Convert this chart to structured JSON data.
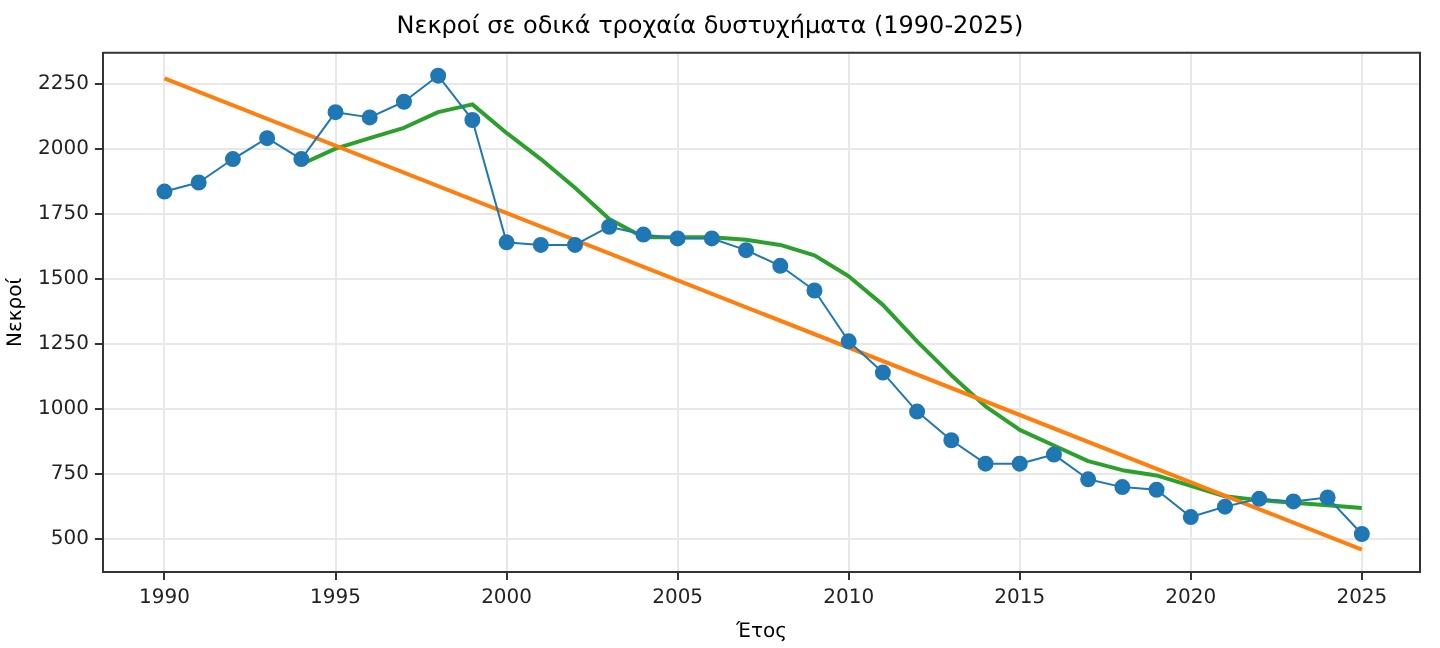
{
  "chart_data": {
    "type": "line",
    "title": "Νεκροί σε οδικά τροχαία δυστυχήματα (1990-2025)",
    "xlabel": "Έτος",
    "ylabel": "Νεκροί",
    "xlim": [
      1988.2,
      2026.7
    ],
    "xticks": [
      1990,
      1995,
      2000,
      2005,
      2010,
      2015,
      2020,
      2025
    ],
    "ylim": [
      374,
      2368
    ],
    "yticks": [
      500,
      750,
      1000,
      1250,
      1500,
      1750,
      2000,
      2250
    ],
    "grid": true,
    "legend": false,
    "series": [
      {
        "color": "#1f77b4",
        "marker": "circle",
        "x": [
          1990,
          1991,
          1992,
          1993,
          1994,
          1995,
          1996,
          1997,
          1998,
          1999,
          2000,
          2001,
          2002,
          2003,
          2004,
          2005,
          2006,
          2007,
          2008,
          2009,
          2010,
          2011,
          2012,
          2013,
          2014,
          2015,
          2016,
          2017,
          2018,
          2019,
          2020,
          2021,
          2022,
          2023,
          2024,
          2025
        ],
        "values": [
          1835,
          1870,
          1960,
          2040,
          1960,
          2140,
          2120,
          2180,
          2280,
          2110,
          1640,
          1630,
          1630,
          1700,
          1670,
          1655,
          1655,
          1610,
          1550,
          1455,
          1260,
          1140,
          990,
          880,
          790,
          790,
          825,
          730,
          700,
          690,
          585,
          625,
          655,
          645,
          660,
          520
        ]
      },
      {
        "color": "#ff7f0e",
        "marker": "none",
        "x": [
          1990,
          2025
        ],
        "values": [
          2270,
          460
        ]
      },
      {
        "color": "#2ca02c",
        "marker": "none",
        "x": [
          1994,
          1995,
          1996,
          1997,
          1998,
          1999,
          2000,
          2001,
          2002,
          2003,
          2004,
          2005,
          2006,
          2007,
          2008,
          2009,
          2010,
          2011,
          2012,
          2013,
          2014,
          2015,
          2016,
          2017,
          2018,
          2019,
          2020,
          2021,
          2022,
          2023,
          2024,
          2025
        ],
        "values": [
          1940,
          2000,
          2040,
          2080,
          2140,
          2170,
          2060,
          1960,
          1850,
          1730,
          1660,
          1660,
          1660,
          1650,
          1630,
          1590,
          1510,
          1400,
          1260,
          1130,
          1010,
          920,
          860,
          800,
          765,
          745,
          705,
          665,
          650,
          640,
          630,
          620
        ]
      }
    ]
  }
}
